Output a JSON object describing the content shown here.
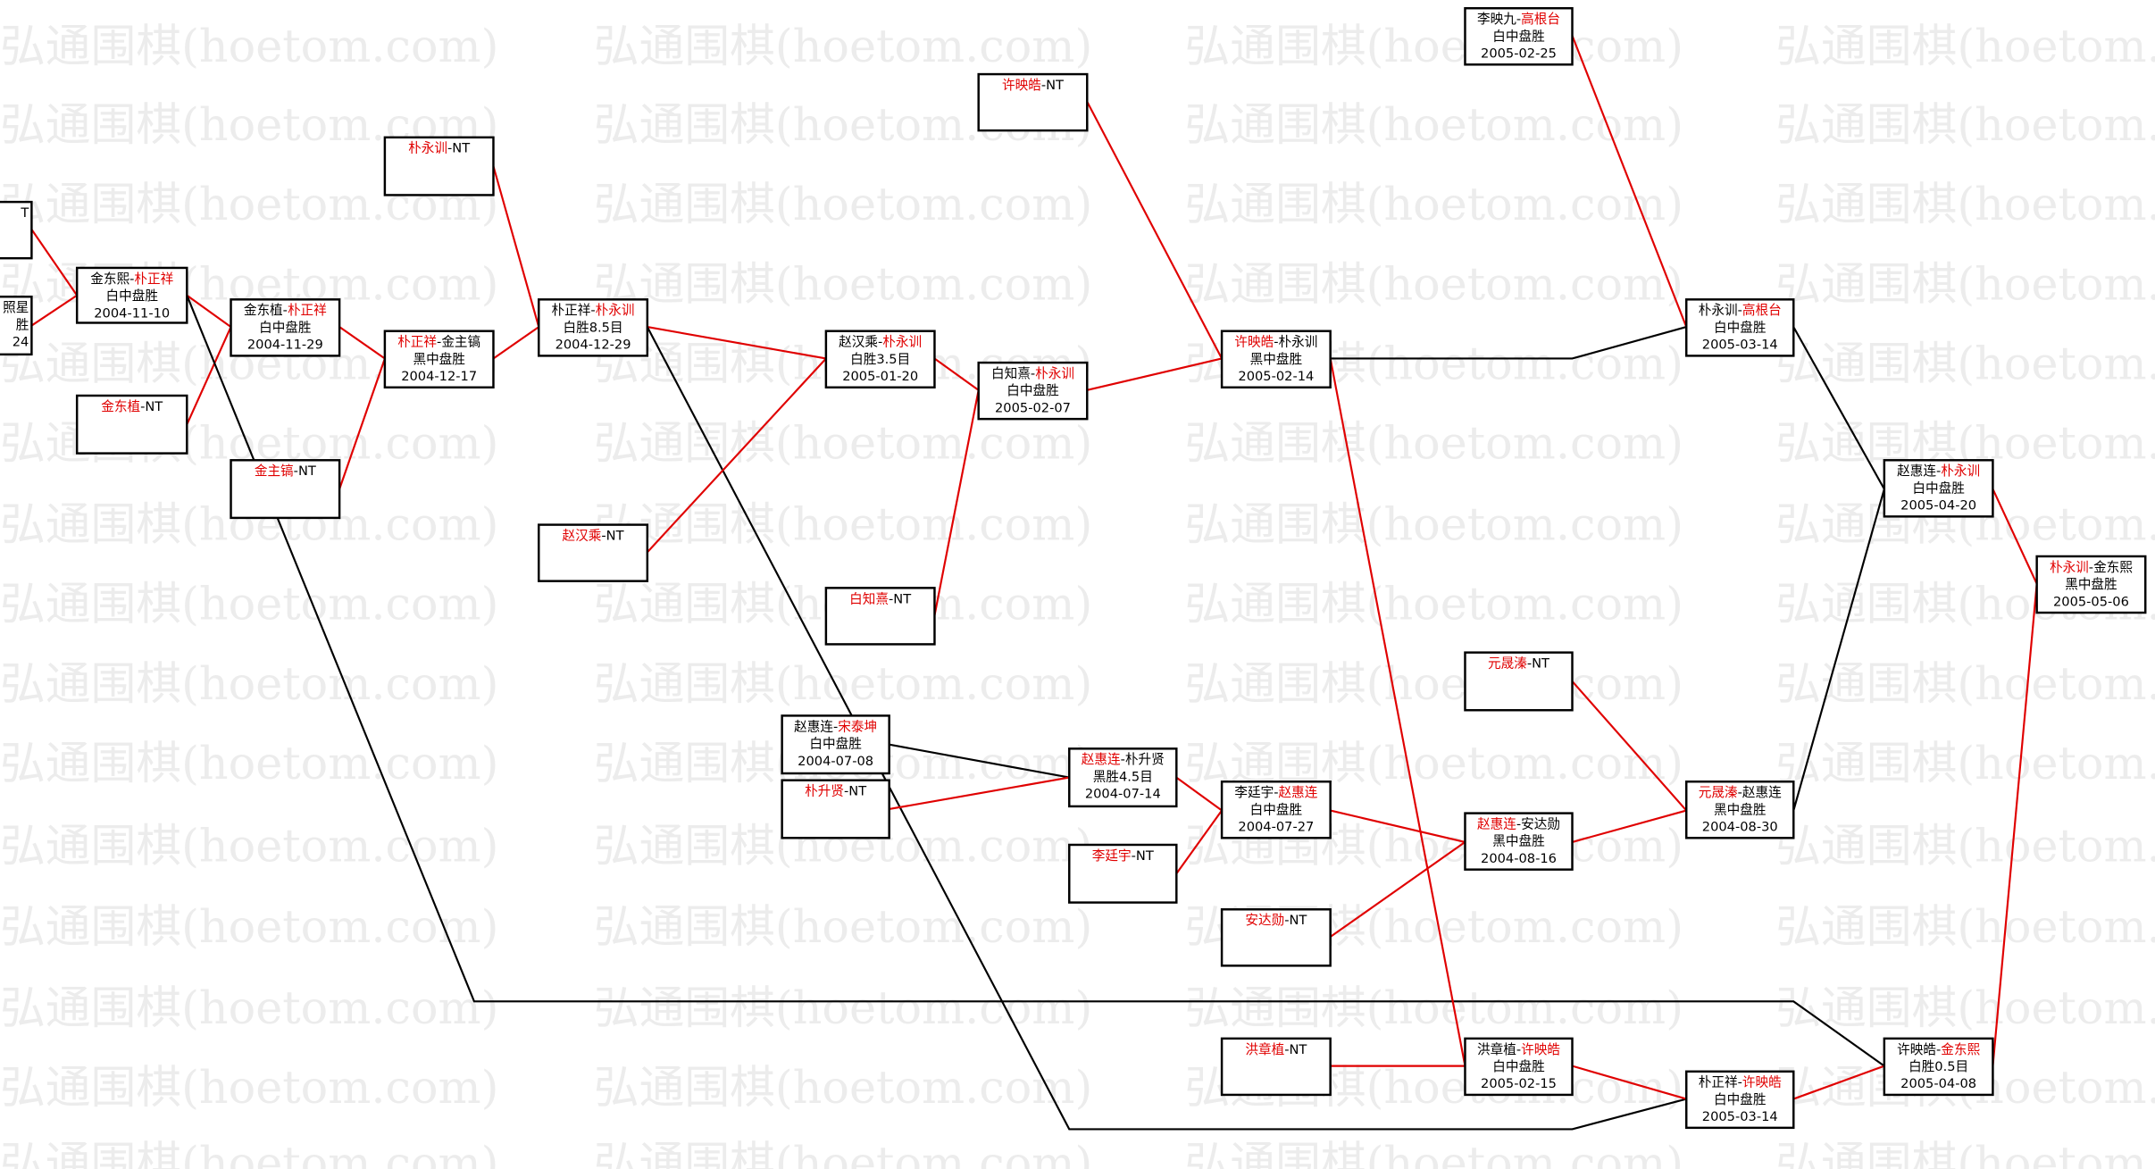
{
  "watermark": "弘通围棋(hoetom.com)",
  "nodes": [
    {
      "title": [
        {
          "text": "T",
          "color": "#000000"
        }
      ]
    },
    {
      "title": [
        {
          "text": "照星",
          "color": "#000000"
        }
      ],
      "result": "胜",
      "date": "24"
    },
    {
      "title": [
        {
          "text": "金东熙",
          "color": "#000000"
        },
        {
          "text": "-",
          "color": "#000000"
        },
        {
          "text": "朴正祥",
          "color": "#e00000"
        }
      ],
      "result": "白中盘胜",
      "date": "2004-11-10"
    },
    {
      "title": [
        {
          "text": "金东植",
          "color": "#e00000"
        },
        {
          "text": "-NT",
          "color": "#000000"
        }
      ]
    },
    {
      "title": [
        {
          "text": "金东植",
          "color": "#000000"
        },
        {
          "text": "-",
          "color": "#000000"
        },
        {
          "text": "朴正祥",
          "color": "#e00000"
        }
      ],
      "result": "白中盘胜",
      "date": "2004-11-29"
    },
    {
      "title": [
        {
          "text": "金主镐",
          "color": "#e00000"
        },
        {
          "text": "-NT",
          "color": "#000000"
        }
      ]
    },
    {
      "title": [
        {
          "text": "朴正祥",
          "color": "#e00000"
        },
        {
          "text": "-",
          "color": "#000000"
        },
        {
          "text": "金主镐",
          "color": "#000000"
        }
      ],
      "result": "黑中盘胜",
      "date": "2004-12-17"
    },
    {
      "title": [
        {
          "text": "朴永训",
          "color": "#e00000"
        },
        {
          "text": "-NT",
          "color": "#000000"
        }
      ]
    },
    {
      "title": [
        {
          "text": "朴正祥",
          "color": "#000000"
        },
        {
          "text": "-",
          "color": "#000000"
        },
        {
          "text": "朴永训",
          "color": "#e00000"
        }
      ],
      "result": "白胜8.5目",
      "date": "2004-12-29"
    },
    {
      "title": [
        {
          "text": "赵汉乘",
          "color": "#e00000"
        },
        {
          "text": "-NT",
          "color": "#000000"
        }
      ]
    },
    {
      "title": [
        {
          "text": "赵汉乘",
          "color": "#000000"
        },
        {
          "text": "-",
          "color": "#000000"
        },
        {
          "text": "朴永训",
          "color": "#e00000"
        }
      ],
      "result": "白胜3.5目",
      "date": "2005-01-20"
    },
    {
      "title": [
        {
          "text": "白知熹",
          "color": "#e00000"
        },
        {
          "text": "-NT",
          "color": "#000000"
        }
      ]
    },
    {
      "title": [
        {
          "text": "白知熹",
          "color": "#000000"
        },
        {
          "text": "-",
          "color": "#000000"
        },
        {
          "text": "朴永训",
          "color": "#e00000"
        }
      ],
      "result": "白中盘胜",
      "date": "2005-02-07"
    },
    {
      "title": [
        {
          "text": "许映皓",
          "color": "#e00000"
        },
        {
          "text": "-NT",
          "color": "#000000"
        }
      ]
    },
    {
      "title": [
        {
          "text": "许映皓",
          "color": "#e00000"
        },
        {
          "text": "-",
          "color": "#000000"
        },
        {
          "text": "朴永训",
          "color": "#000000"
        }
      ],
      "result": "黑中盘胜",
      "date": "2005-02-14"
    },
    {
      "title": [
        {
          "text": "李映九",
          "color": "#000000"
        },
        {
          "text": "-",
          "color": "#000000"
        },
        {
          "text": "高根台",
          "color": "#e00000"
        }
      ],
      "result": "白中盘胜",
      "date": "2005-02-25"
    },
    {
      "title": [
        {
          "text": "朴永训",
          "color": "#000000"
        },
        {
          "text": "-",
          "color": "#000000"
        },
        {
          "text": "高根台",
          "color": "#e00000"
        }
      ],
      "result": "白中盘胜",
      "date": "2005-03-14"
    },
    {
      "title": [
        {
          "text": "赵惠连",
          "color": "#000000"
        },
        {
          "text": "-",
          "color": "#000000"
        },
        {
          "text": "朴永训",
          "color": "#e00000"
        }
      ],
      "result": "白中盘胜",
      "date": "2005-04-20"
    },
    {
      "title": [
        {
          "text": "朴永训",
          "color": "#e00000"
        },
        {
          "text": "-",
          "color": "#000000"
        },
        {
          "text": "金东熙",
          "color": "#000000"
        }
      ],
      "result": "黑中盘胜",
      "date": "2005-05-06"
    },
    {
      "title": [
        {
          "text": "元晟溱",
          "color": "#e00000"
        },
        {
          "text": "-NT",
          "color": "#000000"
        }
      ]
    },
    {
      "title": [
        {
          "text": "元晟溱",
          "color": "#e00000"
        },
        {
          "text": "-",
          "color": "#000000"
        },
        {
          "text": "赵惠连",
          "color": "#000000"
        }
      ],
      "result": "黑中盘胜",
      "date": "2004-08-30"
    },
    {
      "title": [
        {
          "text": "赵惠连",
          "color": "#e00000"
        },
        {
          "text": "-",
          "color": "#000000"
        },
        {
          "text": "安达勋",
          "color": "#000000"
        }
      ],
      "result": "黑中盘胜",
      "date": "2004-08-16"
    },
    {
      "title": [
        {
          "text": "李廷宇",
          "color": "#000000"
        },
        {
          "text": "-",
          "color": "#000000"
        },
        {
          "text": "赵惠连",
          "color": "#e00000"
        }
      ],
      "result": "白中盘胜",
      "date": "2004-07-27"
    },
    {
      "title": [
        {
          "text": "安达勋",
          "color": "#e00000"
        },
        {
          "text": "-NT",
          "color": "#000000"
        }
      ]
    },
    {
      "title": [
        {
          "text": "赵惠连",
          "color": "#e00000"
        },
        {
          "text": "-",
          "color": "#000000"
        },
        {
          "text": "朴升贤",
          "color": "#000000"
        }
      ],
      "result": "黑胜4.5目",
      "date": "2004-07-14"
    },
    {
      "title": [
        {
          "text": "李廷宇",
          "color": "#e00000"
        },
        {
          "text": "-NT",
          "color": "#000000"
        }
      ]
    },
    {
      "title": [
        {
          "text": "赵惠连",
          "color": "#000000"
        },
        {
          "text": "-",
          "color": "#000000"
        },
        {
          "text": "宋泰坤",
          "color": "#e00000"
        }
      ],
      "result": "白中盘胜",
      "date": "2004-07-08"
    },
    {
      "title": [
        {
          "text": "朴升贤",
          "color": "#e00000"
        },
        {
          "text": "-NT",
          "color": "#000000"
        }
      ]
    },
    {
      "title": [
        {
          "text": "洪章植",
          "color": "#e00000"
        },
        {
          "text": "-NT",
          "color": "#000000"
        }
      ]
    },
    {
      "title": [
        {
          "text": "洪章植",
          "color": "#000000"
        },
        {
          "text": "-",
          "color": "#000000"
        },
        {
          "text": "许映皓",
          "color": "#e00000"
        }
      ],
      "result": "白中盘胜",
      "date": "2005-02-15"
    },
    {
      "title": [
        {
          "text": "朴正祥",
          "color": "#000000"
        },
        {
          "text": "-",
          "color": "#000000"
        },
        {
          "text": "许映皓",
          "color": "#e00000"
        }
      ],
      "result": "白中盘胜",
      "date": "2005-03-14"
    },
    {
      "title": [
        {
          "text": "许映皓",
          "color": "#000000"
        },
        {
          "text": "-",
          "color": "#000000"
        },
        {
          "text": "金东熙",
          "color": "#e00000"
        }
      ],
      "result": "白胜0.5目",
      "date": "2005-04-08"
    }
  ]
}
